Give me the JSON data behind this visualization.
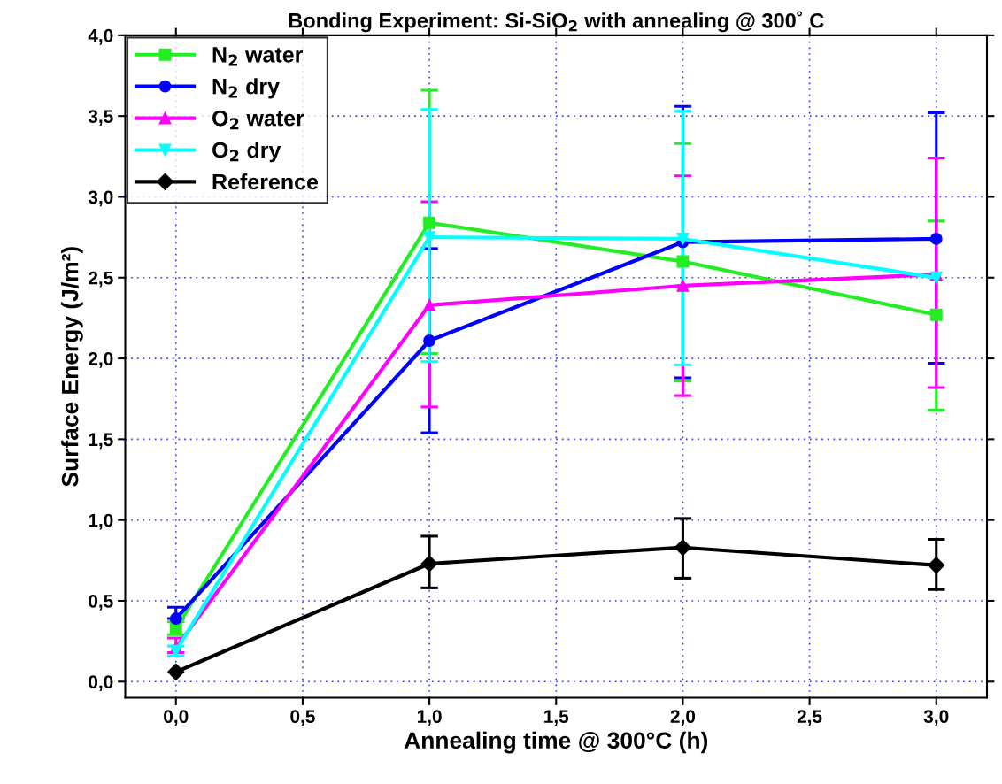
{
  "chart_data": {
    "type": "line",
    "title": "Bonding Experiment: Si-SiO$_{2}$ with annealing @ 300˚ C",
    "xlabel": "Annealing time @ 300°C (h)",
    "ylabel": "Surface Energy (J/m²)",
    "x": [
      0,
      1,
      2,
      3
    ],
    "xlim": [
      -0.2,
      3.2
    ],
    "ylim": [
      -0.1,
      4.0
    ],
    "xticks": [
      {
        "value": 0,
        "label": "0,0"
      },
      {
        "value": 0.5,
        "label": "0,5"
      },
      {
        "value": 1,
        "label": "1,0"
      },
      {
        "value": 1.5,
        "label": "1,5"
      },
      {
        "value": 2,
        "label": "2,0"
      },
      {
        "value": 2.5,
        "label": "2,5"
      },
      {
        "value": 3,
        "label": "3,0"
      }
    ],
    "yticks": [
      {
        "value": 0,
        "label": "0,0"
      },
      {
        "value": 0.5,
        "label": "0,5"
      },
      {
        "value": 1,
        "label": "1,0"
      },
      {
        "value": 1.5,
        "label": "1,5"
      },
      {
        "value": 2,
        "label": "2,0"
      },
      {
        "value": 2.5,
        "label": "2,5"
      },
      {
        "value": 3,
        "label": "3,0"
      },
      {
        "value": 3.5,
        "label": "3,5"
      },
      {
        "value": 4,
        "label": "4,0"
      }
    ],
    "grid": true,
    "legend": "top left",
    "line_style": "solid",
    "series": [
      {
        "name": "N$_{2}$ water",
        "color": "#22ee22",
        "marker": "square",
        "values": [
          0.33,
          2.84,
          2.6,
          2.27
        ],
        "errors": [
          [
            0.29,
            0.37
          ],
          [
            2.03,
            3.66
          ],
          [
            1.86,
            3.33
          ],
          [
            1.68,
            2.85
          ]
        ]
      },
      {
        "name": "N$_{2}$ dry",
        "color": "#0000ff",
        "marker": "circle",
        "values": [
          0.39,
          2.11,
          2.72,
          2.74
        ],
        "errors": [
          [
            0.39,
            0.46
          ],
          [
            1.54,
            2.68
          ],
          [
            1.88,
            3.56
          ],
          [
            1.97,
            3.52
          ]
        ]
      },
      {
        "name": "O$_{2}$ water",
        "color": "#ff00ff",
        "marker": "triangle",
        "values": [
          0.21,
          2.33,
          2.45,
          2.52
        ],
        "errors": [
          [
            0.18,
            0.27
          ],
          [
            1.7,
            2.97
          ],
          [
            1.77,
            3.13
          ],
          [
            1.82,
            3.24
          ]
        ]
      },
      {
        "name": "O$_{2}$ dry",
        "color": "#00ffff",
        "marker": "triangle_down",
        "values": [
          0.19,
          2.75,
          2.74,
          2.5
        ],
        "errors": [
          [
            0.16,
            0.22
          ],
          [
            1.98,
            3.54
          ],
          [
            1.96,
            3.53
          ],
          null
        ]
      },
      {
        "name": "Reference",
        "color": "#000000",
        "marker": "diamond",
        "values": [
          0.06,
          0.73,
          0.83,
          0.72
        ],
        "errors": [
          null,
          [
            0.58,
            0.9
          ],
          [
            0.64,
            1.01
          ],
          [
            0.57,
            0.88
          ]
        ]
      }
    ]
  }
}
